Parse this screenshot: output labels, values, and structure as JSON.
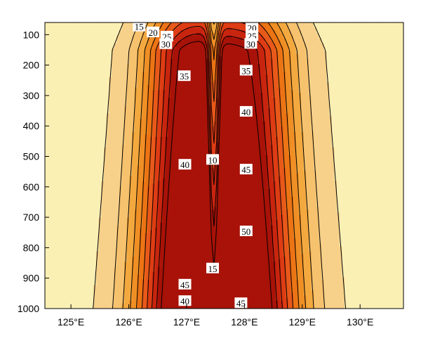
{
  "chart_data": {
    "type": "contour",
    "title": "",
    "xlabel": "",
    "ylabel": "",
    "x_ticks": [
      {
        "value": 125,
        "label": "125°E"
      },
      {
        "value": 126,
        "label": "126°E"
      },
      {
        "value": 127,
        "label": "127°E"
      },
      {
        "value": 128,
        "label": "128°E"
      },
      {
        "value": 129,
        "label": "129°E"
      },
      {
        "value": 130,
        "label": "130°E"
      }
    ],
    "y_ticks": [
      {
        "value": 100,
        "label": "100"
      },
      {
        "value": 200,
        "label": "200"
      },
      {
        "value": 300,
        "label": "300"
      },
      {
        "value": 400,
        "label": "400"
      },
      {
        "value": 500,
        "label": "500"
      },
      {
        "value": 600,
        "label": "600"
      },
      {
        "value": 700,
        "label": "700"
      },
      {
        "value": 800,
        "label": "800"
      },
      {
        "value": 900,
        "label": "900"
      },
      {
        "value": 1000,
        "label": "1000"
      }
    ],
    "xlim": [
      124.55,
      130.75
    ],
    "ylim": [
      1000,
      60
    ],
    "y_reversed": true,
    "contour_levels": [
      5,
      10,
      15,
      20,
      25,
      30,
      35,
      40,
      45,
      50
    ],
    "fill_colors": [
      "#fbf0b4",
      "#f7d18a",
      "#f6c26e",
      "#f3a93f",
      "#ef8f25",
      "#ec7414",
      "#e8591a",
      "#de3c14",
      "#c8250f",
      "#a81208"
    ],
    "contour_labels": [
      {
        "text": "15",
        "x": 126.18,
        "y": 73
      },
      {
        "text": "20",
        "x": 126.42,
        "y": 92
      },
      {
        "text": "25",
        "x": 126.66,
        "y": 106
      },
      {
        "text": "30",
        "x": 126.64,
        "y": 131
      },
      {
        "text": "35",
        "x": 126.96,
        "y": 236
      },
      {
        "text": "40",
        "x": 126.97,
        "y": 527
      },
      {
        "text": "45",
        "x": 126.97,
        "y": 921
      },
      {
        "text": "40",
        "x": 126.97,
        "y": 975
      },
      {
        "text": "10",
        "x": 127.45,
        "y": 511
      },
      {
        "text": "15",
        "x": 127.45,
        "y": 868
      },
      {
        "text": "20",
        "x": 128.13,
        "y": 77
      },
      {
        "text": "25",
        "x": 128.13,
        "y": 104
      },
      {
        "text": "30",
        "x": 128.11,
        "y": 130
      },
      {
        "text": "35",
        "x": 128.03,
        "y": 218
      },
      {
        "text": "40",
        "x": 128.03,
        "y": 353
      },
      {
        "text": "45",
        "x": 128.03,
        "y": 543
      },
      {
        "text": "50",
        "x": 128.03,
        "y": 746
      },
      {
        "text": "45",
        "x": 127.94,
        "y": 982
      }
    ]
  }
}
